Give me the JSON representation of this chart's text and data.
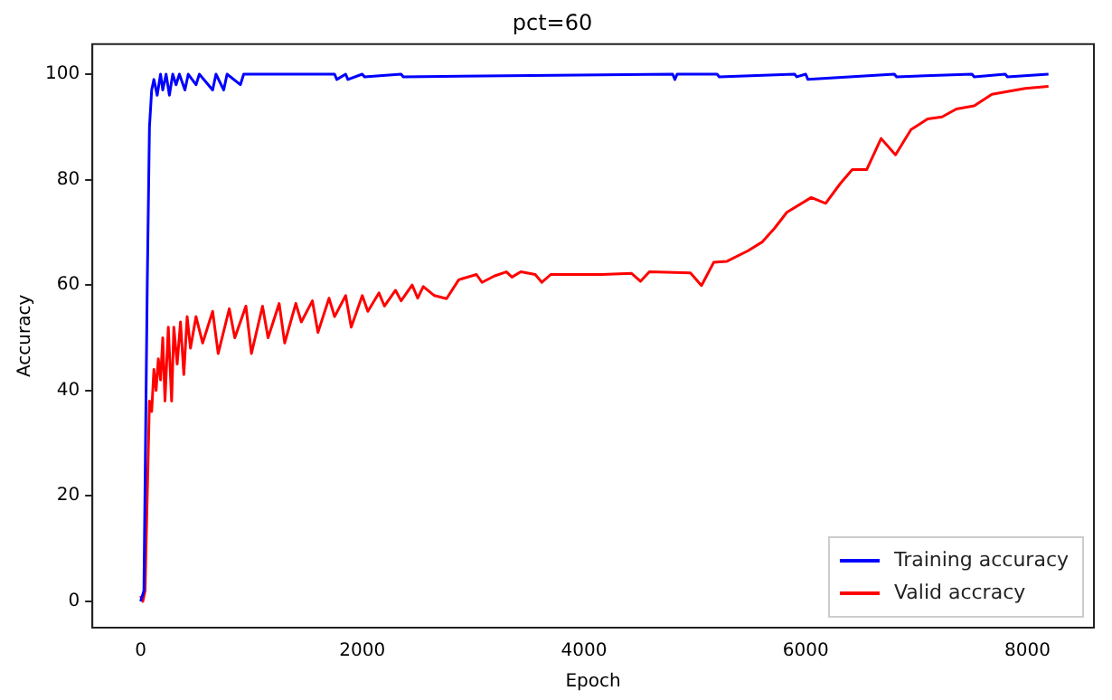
{
  "chart_data": {
    "type": "line",
    "title": "pct=60",
    "xlabel": "Epoch",
    "ylabel": "Accuracy",
    "xlim": [
      -435,
      8600
    ],
    "ylim": [
      -5,
      105.7
    ],
    "xticks": [
      0,
      2000,
      4000,
      6000,
      8000
    ],
    "yticks": [
      0,
      20,
      40,
      60,
      80,
      100
    ],
    "grid": false,
    "legend": "bottom right",
    "marker": "none",
    "line_style": "solid",
    "series": [
      {
        "name": "Training accuracy",
        "color": "#0000ff",
        "x": [
          0,
          30,
          60,
          80,
          100,
          120,
          150,
          180,
          200,
          230,
          260,
          290,
          320,
          350,
          400,
          430,
          500,
          530,
          650,
          680,
          750,
          780,
          900,
          930,
          1500,
          1750,
          1770,
          1850,
          1870,
          2000,
          2020,
          2350,
          2370,
          4800,
          4820,
          4840,
          5200,
          5220,
          5900,
          5920,
          6000,
          6020,
          6800,
          6820,
          7500,
          7520,
          7800,
          7820,
          8190
        ],
        "values": [
          0,
          2,
          60,
          90,
          97,
          99,
          96,
          100,
          97,
          100,
          96,
          100,
          98,
          100,
          97,
          100,
          98,
          100,
          97,
          100,
          97,
          100,
          98,
          100,
          100,
          100,
          99,
          100,
          99,
          100,
          99.5,
          100,
          99.5,
          100,
          99,
          100,
          100,
          99.5,
          100,
          99.5,
          100,
          99,
          100,
          99.5,
          100,
          99.5,
          100,
          99.5,
          100
        ]
      },
      {
        "name": "Valid accracy",
        "color": "#ff0000",
        "x": [
          0,
          20,
          40,
          60,
          80,
          100,
          120,
          140,
          160,
          180,
          200,
          220,
          250,
          280,
          300,
          330,
          360,
          390,
          420,
          450,
          500,
          560,
          650,
          700,
          800,
          850,
          950,
          1000,
          1100,
          1150,
          1250,
          1300,
          1400,
          1450,
          1550,
          1600,
          1700,
          1750,
          1850,
          1900,
          2000,
          2050,
          2150,
          2200,
          2300,
          2350,
          2450,
          2500,
          2550,
          2650,
          2760,
          2870,
          3030,
          3080,
          3190,
          3300,
          3350,
          3430,
          3560,
          3620,
          3700,
          4160,
          4430,
          4510,
          4590,
          4960,
          5060,
          5170,
          5290,
          5480,
          5610,
          5720,
          5830,
          6050,
          6180,
          6310,
          6420,
          6550,
          6680,
          6810,
          6950,
          7100,
          7230,
          7360,
          7520,
          7680,
          7980,
          8190
        ],
        "values": [
          1,
          0,
          2,
          20,
          38,
          36,
          44,
          40,
          46,
          42,
          50,
          38,
          52,
          38,
          52,
          45,
          53,
          43,
          54,
          48,
          54,
          49,
          55,
          47,
          55.5,
          50,
          56,
          47,
          56,
          50,
          56.5,
          49,
          56.5,
          53,
          57,
          51,
          57.5,
          54,
          58,
          52,
          58,
          55,
          58.5,
          56,
          59,
          57,
          60,
          57.5,
          59.7,
          58,
          57.4,
          61,
          62,
          60.5,
          61.7,
          62.5,
          61.5,
          62.5,
          62,
          60.5,
          62,
          62,
          62.2,
          60.7,
          62.5,
          62.3,
          59.9,
          64.3,
          64.5,
          66.5,
          68.2,
          70.8,
          73.8,
          76.6,
          75.5,
          79.2,
          81.9,
          81.9,
          87.8,
          84.7,
          89.5,
          91.5,
          91.9,
          93.4,
          94,
          96.2,
          97.3,
          97.7
        ]
      }
    ]
  }
}
